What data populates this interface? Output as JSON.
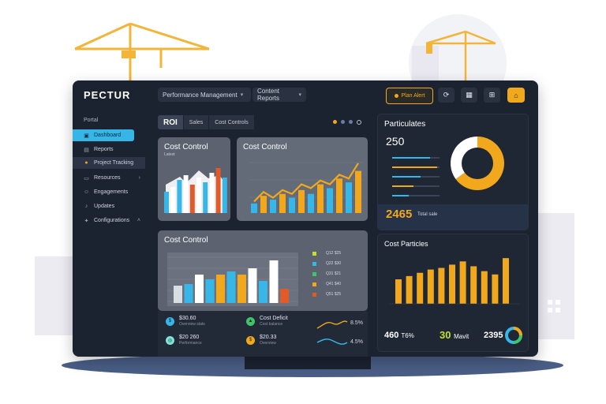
{
  "app": {
    "logo": "PECTUR"
  },
  "header": {
    "dropdown1": "Performance Management",
    "dropdown2": "Content Reports",
    "plan_label": "Plan Alert",
    "icons": [
      "refresh-icon",
      "calendar-icon",
      "grid-icon",
      "home-icon"
    ]
  },
  "sidebar": {
    "heading": "Portal",
    "items": [
      {
        "label": "Dashboard",
        "icon": "dashboard-icon"
      },
      {
        "label": "Reports",
        "icon": "document-icon"
      },
      {
        "label": "Project Tracking",
        "icon": "tracking-icon"
      },
      {
        "label": "Resources",
        "icon": "folder-icon"
      },
      {
        "label": "Engagements",
        "icon": "people-icon"
      },
      {
        "label": "Updates",
        "icon": "bell-icon"
      },
      {
        "label": "Configurations",
        "icon": "settings-icon"
      }
    ]
  },
  "tabs": [
    "ROI",
    "Sales",
    "Cost Controls"
  ],
  "card1": {
    "title": "Cost Control",
    "subtitle": "Latest",
    "chart_data": {
      "type": "bar",
      "values": [
        18,
        22,
        28,
        32,
        24,
        30,
        26,
        34,
        38,
        30
      ]
    }
  },
  "card2": {
    "title": "Cost Control",
    "chart_data": {
      "type": "bar",
      "values": [
        10,
        18,
        14,
        20,
        16,
        24,
        20,
        30,
        26,
        36,
        32,
        44
      ],
      "line": [
        12,
        22,
        16,
        24,
        20,
        30,
        26,
        34,
        30,
        40,
        36,
        52
      ]
    }
  },
  "card3": {
    "title": "Cost Control",
    "chart_data": {
      "type": "bar",
      "values": [
        22,
        24,
        36,
        30,
        36,
        40,
        36,
        44,
        28,
        54,
        18
      ]
    },
    "legend": [
      {
        "color": "#c2e02a",
        "label": "Q12 $25"
      },
      {
        "color": "#36b7e8",
        "label": "Q22 $30"
      },
      {
        "color": "#41c36a",
        "label": "Q31 $21"
      },
      {
        "color": "#f2a81d",
        "label": "Q41 $40"
      },
      {
        "color": "#e05a2a",
        "label": "Q51 $25"
      }
    ]
  },
  "stats": [
    {
      "value": "$30.60",
      "sub": "Overview stats",
      "color": "#36b7e8",
      "icon": "coin-icon"
    },
    {
      "value": "Cost Deficit",
      "sub": "Cost balance",
      "color": "#41c36a",
      "icon": "chart-icon"
    },
    {
      "value": "$20 260",
      "sub": "Performance",
      "color": "#7fe3d9",
      "icon": "target-icon"
    },
    {
      "value": "$20.33",
      "sub": "Overview",
      "color": "#f2a81d",
      "icon": "money-icon"
    }
  ],
  "sparks": {
    "pct1": "8.5%",
    "pct2": "4.5%"
  },
  "panel_right_top": {
    "title": "Particulates",
    "value": "250",
    "big_value": "2465",
    "big_sub": "Total sale",
    "bars": [
      0.8,
      0.95,
      0.6,
      0.45,
      0.35
    ],
    "chart_data": {
      "type": "pie",
      "values": [
        65,
        35
      ]
    }
  },
  "panel_right_bottom": {
    "title": "Cost Particles",
    "chart_data": {
      "type": "bar",
      "values": [
        30,
        34,
        38,
        42,
        44,
        48,
        52,
        46,
        40,
        36,
        56
      ]
    },
    "kpis": [
      {
        "value": "460",
        "label": "T6%"
      },
      {
        "value": "30",
        "label": "Mavit"
      },
      {
        "value": "2395",
        "label": ""
      }
    ]
  },
  "colors": {
    "accent": "#f2a81d",
    "blue": "#36b7e8",
    "panel": "#1c2330"
  }
}
